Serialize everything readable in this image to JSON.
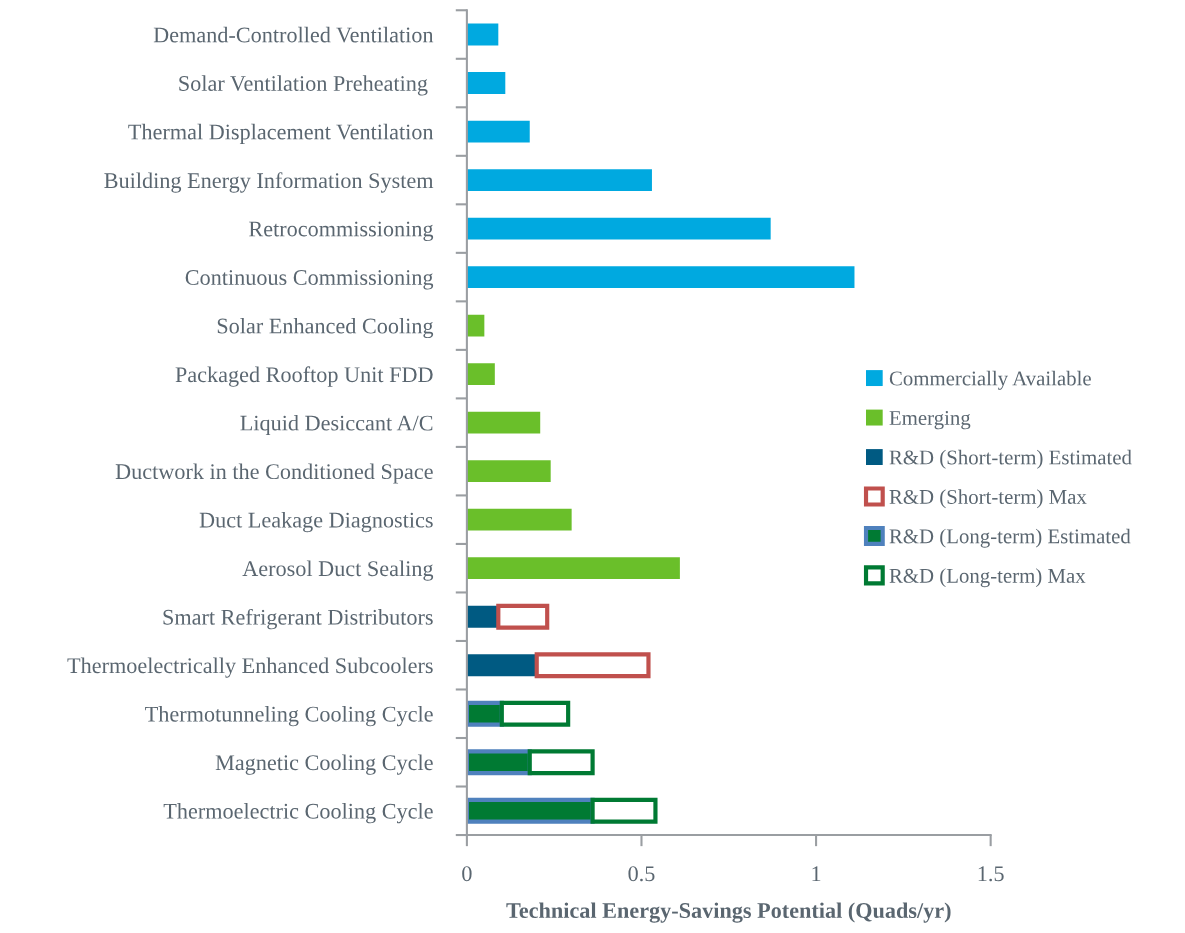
{
  "chart_data": {
    "type": "bar",
    "orientation": "horizontal",
    "stacked": true,
    "xlabel": "Technical Energy-Savings Potential (Quads/yr)",
    "categories": [
      "Demand-Controlled Ventilation",
      "Solar Ventilation Preheating ",
      "Thermal Displacement Ventilation",
      "Building Energy Information System",
      "Retrocommissioning",
      "Continuous Commissioning",
      "Solar Enhanced Cooling",
      "Packaged Rooftop Unit FDD",
      "Liquid Desiccant A/C",
      "Ductwork in the Conditioned Space",
      "Duct Leakage Diagnostics",
      "Aerosol Duct Sealing",
      "Smart Refrigerant Distributors",
      "Thermoelectrically Enhanced Subcoolers",
      "Thermotunneling Cooling Cycle",
      "Magnetic Cooling Cycle",
      "Thermoelectric Cooling Cycle"
    ],
    "series": [
      {
        "name": "Commercially Available",
        "color": "#00a9e0",
        "values": [
          0.09,
          0.11,
          0.18,
          0.53,
          0.87,
          1.11,
          null,
          null,
          null,
          null,
          null,
          null,
          null,
          null,
          null,
          null,
          null
        ]
      },
      {
        "name": "Emerging",
        "color": "#6abf2a",
        "values": [
          null,
          null,
          null,
          null,
          null,
          null,
          0.05,
          0.08,
          0.21,
          0.24,
          0.3,
          0.61,
          null,
          null,
          null,
          null,
          null
        ]
      },
      {
        "name": "R&D (Short-term) Estimated",
        "color": "#005a82",
        "values": [
          null,
          null,
          null,
          null,
          null,
          null,
          null,
          null,
          null,
          null,
          null,
          null,
          0.09,
          0.2,
          null,
          null,
          null
        ]
      },
      {
        "name": "R&D (Short-term) Max",
        "color": "#c0504d",
        "values": [
          null,
          null,
          null,
          null,
          null,
          null,
          null,
          null,
          null,
          null,
          null,
          null,
          0.14,
          0.32,
          null,
          null,
          null
        ]
      },
      {
        "name": "R&D (Long-term) Estimated",
        "color": "#007a33",
        "values": [
          null,
          null,
          null,
          null,
          null,
          null,
          null,
          null,
          null,
          null,
          null,
          null,
          null,
          null,
          0.1,
          0.18,
          0.36
        ]
      },
      {
        "name": "R&D (Long-term) Max",
        "color": "#007a33",
        "values": [
          null,
          null,
          null,
          null,
          null,
          null,
          null,
          null,
          null,
          null,
          null,
          null,
          null,
          null,
          0.19,
          0.18,
          0.18
        ]
      }
    ],
    "xlim": [
      0,
      1.5
    ],
    "xticks": [
      0,
      {
        "value": 0.5,
        "label": "0.5"
      },
      1,
      {
        "value": 1.5,
        "label": "1.5"
      }
    ],
    "grid": false,
    "legend": "right"
  }
}
